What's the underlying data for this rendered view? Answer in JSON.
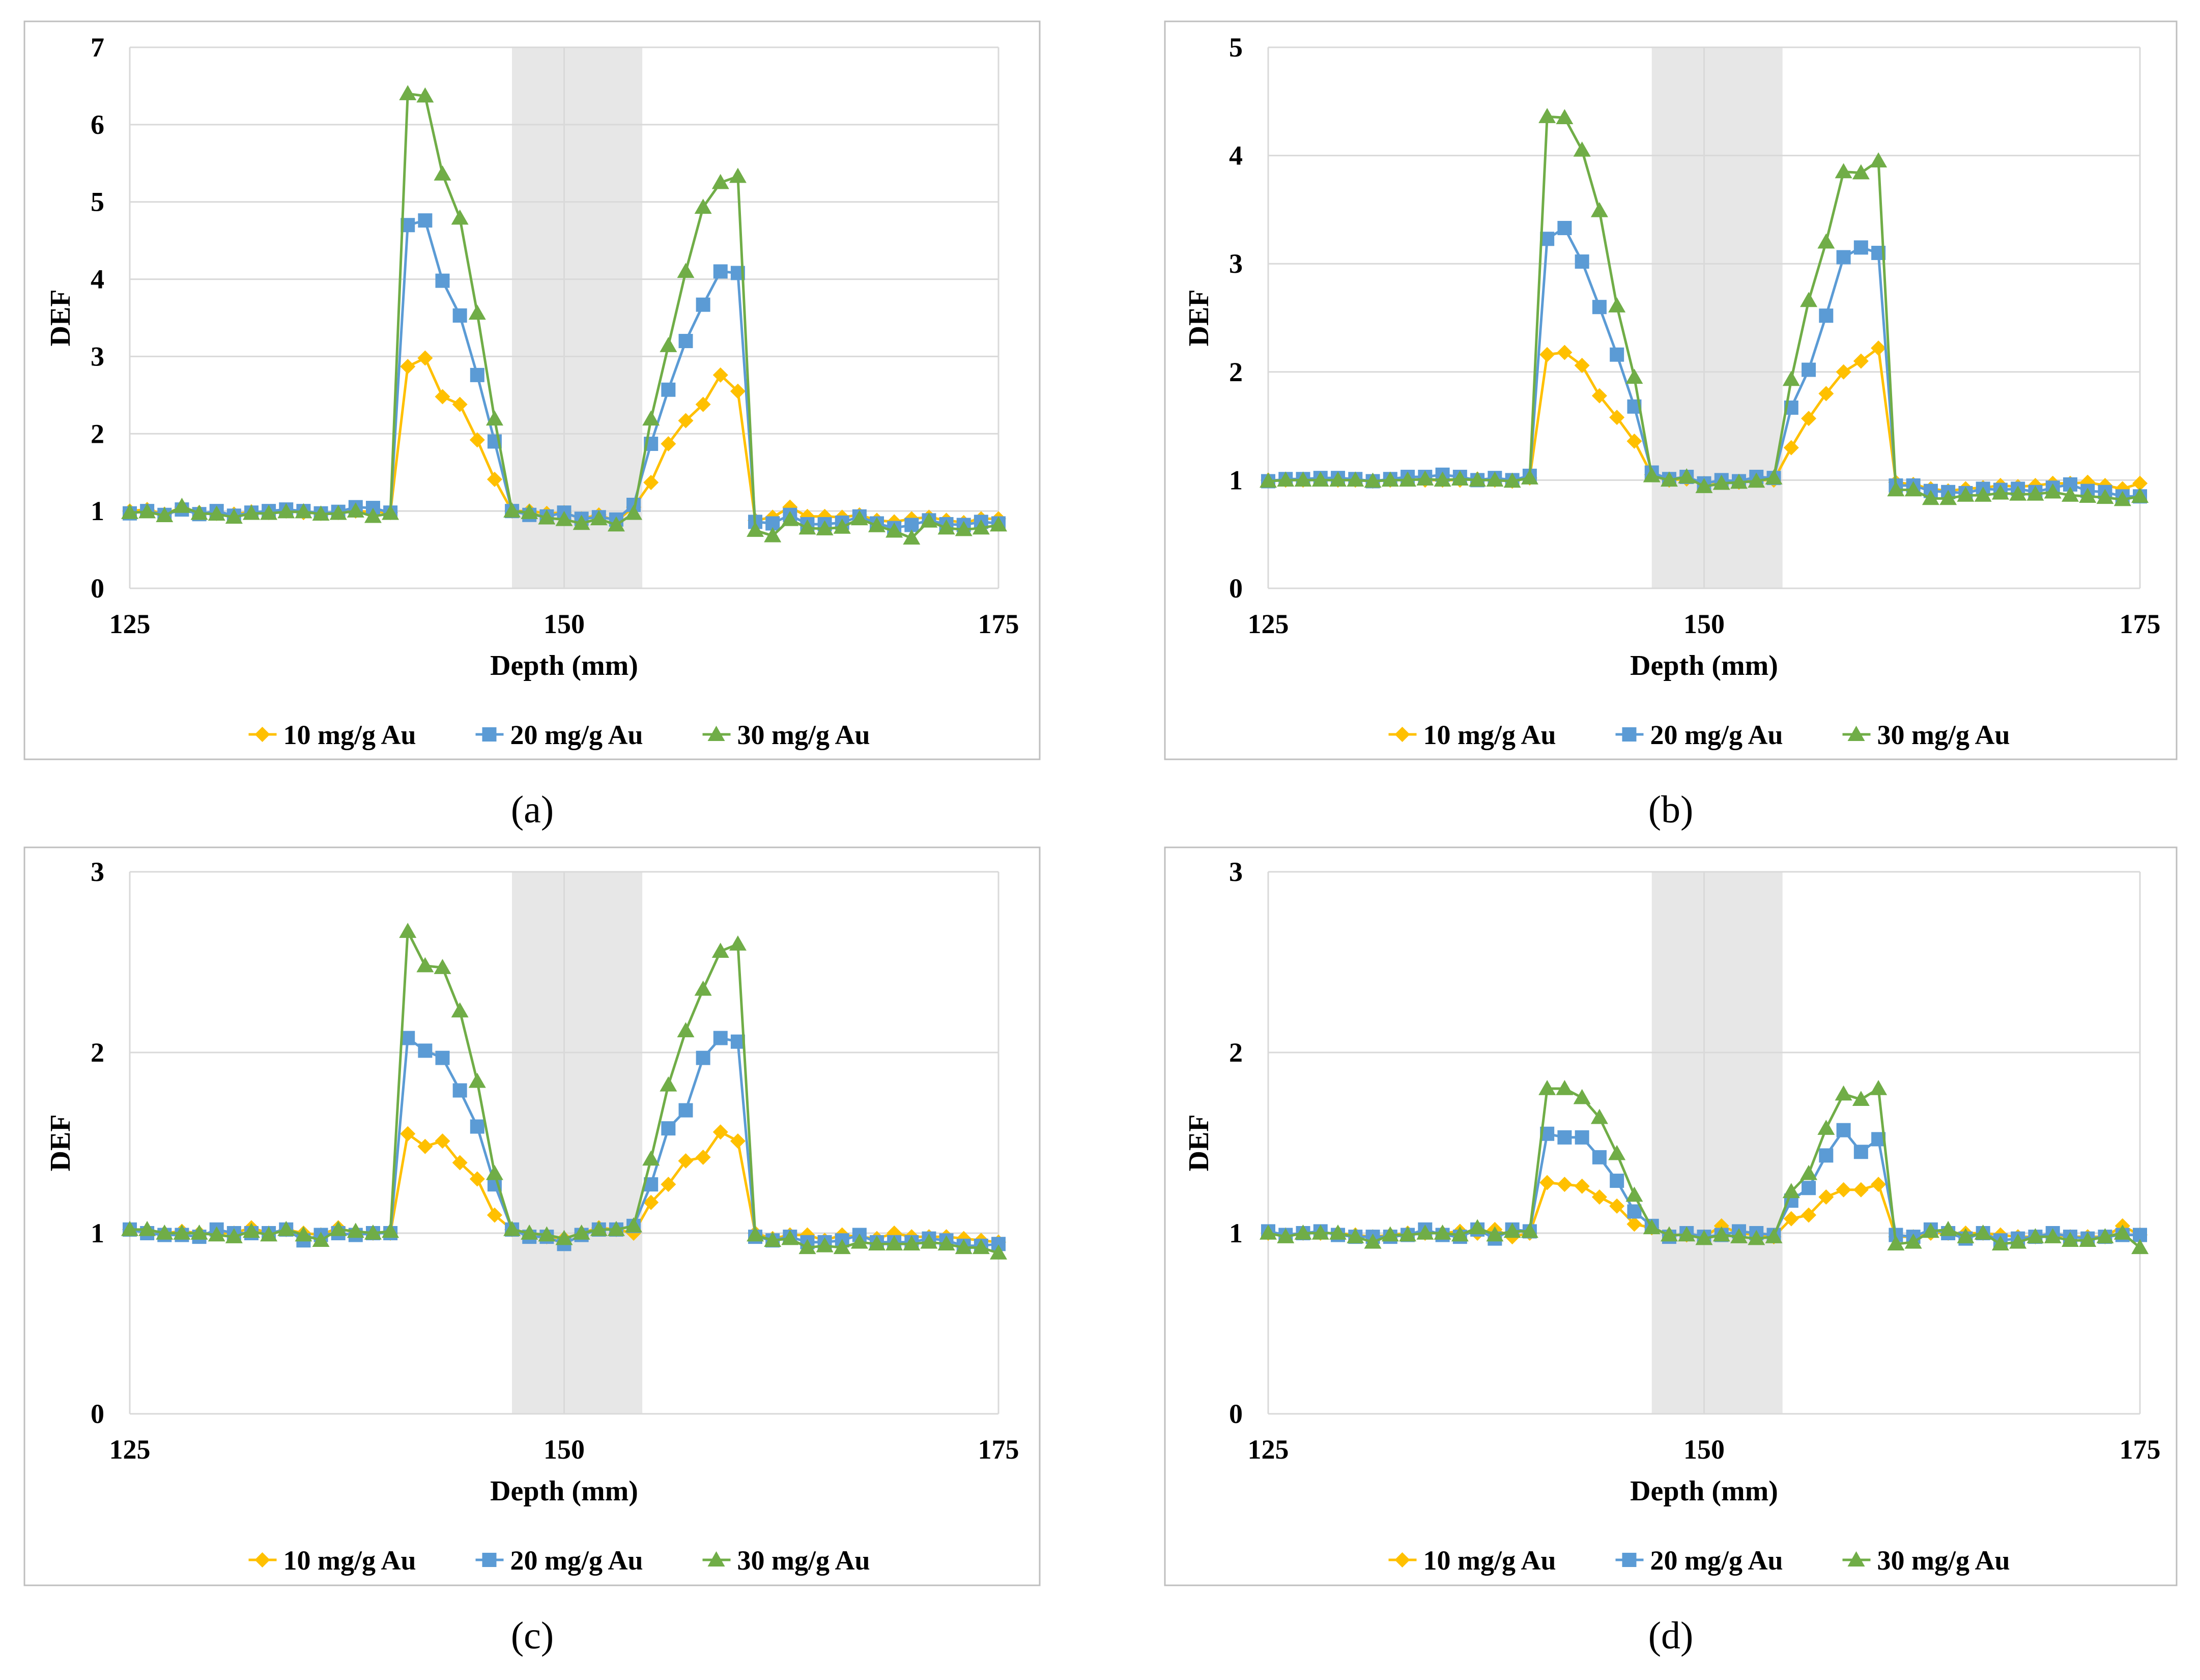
{
  "figure": {
    "panels": [
      "(a)",
      "(b)",
      "(c)",
      "(d)"
    ]
  },
  "colors": {
    "series_10": "#FFC000",
    "series_20": "#5B9BD5",
    "series_30": "#70AD47",
    "grid": "#D9D9D9",
    "shade": "#E7E7E7",
    "frame": "#BFBFBF",
    "text": "#000000"
  },
  "chart_data": [
    {
      "type": "line",
      "panel": "(a)",
      "xlabel": "Depth (mm)",
      "ylabel": "DEF",
      "xlim": [
        125,
        175
      ],
      "ylim": [
        0,
        7
      ],
      "xticks": [
        125,
        150,
        175
      ],
      "yticks": [
        0,
        1,
        2,
        3,
        4,
        5,
        6,
        7
      ],
      "shaded_region": [
        147,
        154.5
      ],
      "grid": true,
      "legend": "bottom",
      "x": [
        125,
        126,
        127,
        128,
        129,
        130,
        131,
        132,
        133,
        134,
        135,
        136,
        137,
        138,
        139,
        140,
        141,
        142,
        143,
        144,
        145,
        146,
        147,
        148,
        149,
        150,
        151,
        152,
        153,
        154,
        155,
        156,
        157,
        158,
        159,
        160,
        161,
        162,
        163,
        164,
        165,
        166,
        167,
        168,
        169,
        170,
        171,
        172,
        173,
        174,
        175
      ],
      "series": [
        {
          "name": "10 mg/g Au",
          "marker": "diamond",
          "values": [
            1.0,
            1.02,
            0.96,
            1.05,
            0.98,
            0.97,
            0.96,
            0.99,
            0.98,
            1.0,
            0.98,
            0.97,
            0.98,
            1.0,
            0.99,
            0.98,
            2.87,
            2.98,
            2.48,
            2.38,
            1.92,
            1.41,
            1.0,
            1.0,
            0.97,
            0.98,
            0.9,
            0.95,
            0.87,
            1.05,
            1.37,
            1.87,
            2.17,
            2.38,
            2.76,
            2.55,
            0.88,
            0.92,
            1.05,
            0.93,
            0.93,
            0.92,
            0.95,
            0.88,
            0.86,
            0.9,
            0.92,
            0.88,
            0.85,
            0.9,
            0.9
          ]
        },
        {
          "name": "20 mg/g Au",
          "marker": "square",
          "values": [
            0.97,
            1.0,
            0.95,
            1.02,
            0.96,
            1.0,
            0.94,
            0.98,
            1.0,
            1.02,
            1.0,
            0.97,
            0.99,
            1.05,
            1.04,
            0.98,
            4.7,
            4.76,
            3.98,
            3.53,
            2.76,
            1.9,
            1.0,
            0.95,
            0.93,
            0.98,
            0.9,
            0.92,
            0.89,
            1.08,
            1.87,
            2.57,
            3.2,
            3.67,
            4.1,
            4.08,
            0.86,
            0.84,
            0.95,
            0.83,
            0.83,
            0.85,
            0.93,
            0.84,
            0.78,
            0.82,
            0.88,
            0.83,
            0.82,
            0.86,
            0.84
          ]
        },
        {
          "name": "30 mg/g Au",
          "marker": "triangle",
          "values": [
            0.98,
            0.99,
            0.94,
            1.06,
            0.97,
            0.96,
            0.92,
            0.97,
            0.97,
            0.99,
            0.99,
            0.96,
            0.97,
            1.0,
            0.93,
            0.97,
            6.4,
            6.37,
            5.36,
            4.79,
            3.56,
            2.19,
            1.0,
            0.98,
            0.91,
            0.89,
            0.84,
            0.9,
            0.82,
            0.97,
            2.19,
            3.14,
            4.1,
            4.93,
            5.25,
            5.33,
            0.75,
            0.68,
            0.89,
            0.78,
            0.77,
            0.79,
            0.9,
            0.81,
            0.74,
            0.65,
            0.87,
            0.78,
            0.76,
            0.78,
            0.82
          ]
        }
      ]
    },
    {
      "type": "line",
      "panel": "(b)",
      "xlabel": "Depth (mm)",
      "ylabel": "DEF",
      "xlim": [
        125,
        175
      ],
      "ylim": [
        0,
        5
      ],
      "xticks": [
        125,
        150,
        175
      ],
      "yticks": [
        0,
        1,
        2,
        3,
        4,
        5
      ],
      "shaded_region": [
        147,
        154.5
      ],
      "grid": true,
      "legend": "bottom",
      "x": [
        125,
        126,
        127,
        128,
        129,
        130,
        131,
        132,
        133,
        134,
        135,
        136,
        137,
        138,
        139,
        140,
        141,
        142,
        143,
        144,
        145,
        146,
        147,
        148,
        149,
        150,
        151,
        152,
        153,
        154,
        155,
        156,
        157,
        158,
        159,
        160,
        161,
        162,
        163,
        164,
        165,
        166,
        167,
        168,
        169,
        170,
        171,
        172,
        173,
        174,
        175
      ],
      "series": [
        {
          "name": "10 mg/g Au",
          "marker": "diamond",
          "values": [
            1.0,
            1.0,
            1.0,
            1.01,
            1.0,
            1.0,
            0.99,
            1.0,
            1.01,
            1.0,
            1.0,
            1.0,
            1.01,
            1.0,
            0.99,
            1.02,
            2.16,
            2.18,
            2.06,
            1.78,
            1.58,
            1.36,
            1.05,
            1.0,
            1.01,
            0.97,
            0.99,
            0.98,
            1.0,
            1.0,
            1.3,
            1.57,
            1.8,
            2.0,
            2.1,
            2.22,
            0.98,
            0.96,
            0.92,
            0.9,
            0.92,
            0.93,
            0.95,
            0.94,
            0.95,
            0.97,
            0.97,
            0.98,
            0.95,
            0.92,
            0.97
          ]
        },
        {
          "name": "20 mg/g Au",
          "marker": "square",
          "values": [
            0.99,
            1.01,
            1.01,
            1.02,
            1.02,
            1.01,
            0.99,
            1.01,
            1.03,
            1.03,
            1.05,
            1.03,
            1.0,
            1.02,
            1.0,
            1.04,
            3.23,
            3.33,
            3.02,
            2.6,
            2.16,
            1.68,
            1.07,
            1.01,
            1.03,
            0.97,
            1.0,
            0.99,
            1.03,
            1.02,
            1.67,
            2.02,
            2.52,
            3.06,
            3.15,
            3.1,
            0.95,
            0.95,
            0.9,
            0.89,
            0.88,
            0.92,
            0.91,
            0.92,
            0.89,
            0.93,
            0.96,
            0.9,
            0.89,
            0.85,
            0.85
          ]
        },
        {
          "name": "30 mg/g Au",
          "marker": "triangle",
          "values": [
            0.99,
            1.0,
            1.0,
            1.0,
            1.0,
            1.0,
            0.99,
            1.0,
            1.0,
            1.01,
            1.0,
            1.01,
            1.0,
            1.0,
            0.99,
            1.02,
            4.36,
            4.35,
            4.05,
            3.49,
            2.61,
            1.95,
            1.04,
            1.0,
            1.03,
            0.94,
            0.97,
            0.98,
            0.99,
            1.02,
            1.93,
            2.66,
            3.2,
            3.85,
            3.84,
            3.95,
            0.91,
            0.91,
            0.83,
            0.83,
            0.86,
            0.86,
            0.88,
            0.87,
            0.87,
            0.89,
            0.86,
            0.85,
            0.84,
            0.82,
            0.85
          ]
        }
      ]
    },
    {
      "type": "line",
      "panel": "(c)",
      "xlabel": "Depth (mm)",
      "ylabel": "DEF",
      "xlim": [
        125,
        175
      ],
      "ylim": [
        0,
        3
      ],
      "xticks": [
        125,
        150,
        175
      ],
      "yticks": [
        0,
        1,
        2,
        3
      ],
      "shaded_region": [
        147,
        154.5
      ],
      "grid": true,
      "legend": "bottom",
      "x": [
        125,
        126,
        127,
        128,
        129,
        130,
        131,
        132,
        133,
        134,
        135,
        136,
        137,
        138,
        139,
        140,
        141,
        142,
        143,
        144,
        145,
        146,
        147,
        148,
        149,
        150,
        151,
        152,
        153,
        154,
        155,
        156,
        157,
        158,
        159,
        160,
        161,
        162,
        163,
        164,
        165,
        166,
        167,
        168,
        169,
        170,
        171,
        172,
        173,
        174,
        175
      ],
      "series": [
        {
          "name": "10 mg/g Au",
          "marker": "diamond",
          "values": [
            1.02,
            1.01,
            1.0,
            1.01,
            1.0,
            1.0,
            1.0,
            1.03,
            1.0,
            1.02,
            1.0,
            0.99,
            1.03,
            1.0,
            1.0,
            1.0,
            1.55,
            1.48,
            1.51,
            1.39,
            1.3,
            1.1,
            1.02,
            0.99,
            0.98,
            0.97,
            1.0,
            1.03,
            1.02,
            1.0,
            1.17,
            1.27,
            1.4,
            1.42,
            1.56,
            1.51,
            1.0,
            0.97,
            0.99,
            0.99,
            0.96,
            0.99,
            0.98,
            0.97,
            1.0,
            0.98,
            0.98,
            0.98,
            0.97,
            0.96,
            0.95
          ]
        },
        {
          "name": "20 mg/g Au",
          "marker": "square",
          "values": [
            1.02,
            1.0,
            0.99,
            0.99,
            0.98,
            1.02,
            1.0,
            1.0,
            1.0,
            1.02,
            0.96,
            0.99,
            1.0,
            0.99,
            1.0,
            1.0,
            2.08,
            2.01,
            1.97,
            1.79,
            1.59,
            1.27,
            1.02,
            0.98,
            0.98,
            0.94,
            0.99,
            1.02,
            1.02,
            1.04,
            1.27,
            1.58,
            1.68,
            1.97,
            2.08,
            2.06,
            0.98,
            0.96,
            0.98,
            0.95,
            0.95,
            0.96,
            0.99,
            0.95,
            0.95,
            0.95,
            0.97,
            0.96,
            0.93,
            0.93,
            0.94
          ]
        },
        {
          "name": "30 mg/g Au",
          "marker": "triangle",
          "values": [
            1.02,
            1.02,
            1.0,
            1.0,
            1.0,
            0.99,
            0.98,
            1.01,
            0.99,
            1.02,
            0.99,
            0.96,
            1.02,
            1.01,
            1.0,
            1.01,
            2.67,
            2.48,
            2.47,
            2.23,
            1.84,
            1.33,
            1.02,
            1.0,
            0.99,
            0.97,
            1.0,
            1.02,
            1.02,
            1.04,
            1.41,
            1.82,
            2.12,
            2.35,
            2.56,
            2.6,
            0.99,
            0.96,
            0.97,
            0.92,
            0.93,
            0.92,
            0.95,
            0.94,
            0.94,
            0.94,
            0.95,
            0.94,
            0.92,
            0.92,
            0.89
          ]
        }
      ]
    },
    {
      "type": "line",
      "panel": "(d)",
      "xlabel": "Depth (mm)",
      "ylabel": "DEF",
      "xlim": [
        125,
        175
      ],
      "ylim": [
        0,
        3
      ],
      "xticks": [
        125,
        150,
        175
      ],
      "yticks": [
        0,
        1,
        2,
        3
      ],
      "shaded_region": [
        147,
        154.5
      ],
      "grid": true,
      "legend": "bottom",
      "x": [
        125,
        126,
        127,
        128,
        129,
        130,
        131,
        132,
        133,
        134,
        135,
        136,
        137,
        138,
        139,
        140,
        141,
        142,
        143,
        144,
        145,
        146,
        147,
        148,
        149,
        150,
        151,
        152,
        153,
        154,
        155,
        156,
        157,
        158,
        159,
        160,
        161,
        162,
        163,
        164,
        165,
        166,
        167,
        168,
        169,
        170,
        171,
        172,
        173,
        174,
        175
      ],
      "series": [
        {
          "name": "10 mg/g Au",
          "marker": "diamond",
          "values": [
            1.0,
            0.99,
            1.0,
            1.0,
            1.0,
            0.99,
            0.98,
            0.99,
            1.0,
            1.0,
            1.0,
            1.01,
            1.0,
            1.02,
            0.98,
            1.0,
            1.28,
            1.27,
            1.26,
            1.2,
            1.15,
            1.05,
            1.03,
            0.99,
            0.99,
            0.98,
            1.04,
            1.0,
            0.99,
            0.98,
            1.08,
            1.1,
            1.2,
            1.24,
            1.24,
            1.27,
            0.98,
            0.98,
            1.0,
            1.0,
            1.0,
            1.0,
            0.99,
            0.98,
            0.98,
            0.99,
            0.98,
            0.98,
            0.98,
            1.04,
            0.99
          ]
        },
        {
          "name": "20 mg/g Au",
          "marker": "square",
          "values": [
            1.01,
            0.99,
            1.0,
            1.01,
            0.99,
            0.98,
            0.98,
            0.98,
            0.99,
            1.02,
            0.99,
            0.98,
            1.02,
            0.97,
            1.02,
            1.01,
            1.55,
            1.53,
            1.53,
            1.42,
            1.29,
            1.12,
            1.04,
            0.98,
            1.0,
            0.98,
            0.99,
            1.01,
            1.0,
            0.99,
            1.18,
            1.25,
            1.43,
            1.57,
            1.45,
            1.52,
            0.99,
            0.98,
            1.02,
            1.0,
            0.97,
            1.0,
            0.96,
            0.97,
            0.98,
            1.0,
            0.98,
            0.97,
            0.98,
            0.99,
            0.99
          ]
        },
        {
          "name": "30 mg/g Au",
          "marker": "triangle",
          "values": [
            1.0,
            0.98,
            1.0,
            1.0,
            1.0,
            0.98,
            0.95,
            0.99,
            0.99,
            1.0,
            1.0,
            0.99,
            1.03,
            0.99,
            1.01,
            1.01,
            1.8,
            1.8,
            1.75,
            1.64,
            1.44,
            1.21,
            1.03,
            0.99,
            0.99,
            0.97,
            0.99,
            0.98,
            0.97,
            0.98,
            1.23,
            1.33,
            1.58,
            1.77,
            1.74,
            1.8,
            0.94,
            0.95,
            1.01,
            1.02,
            0.98,
            1.0,
            0.94,
            0.95,
            0.98,
            0.98,
            0.96,
            0.96,
            0.98,
            1.0,
            0.92
          ]
        }
      ]
    }
  ]
}
